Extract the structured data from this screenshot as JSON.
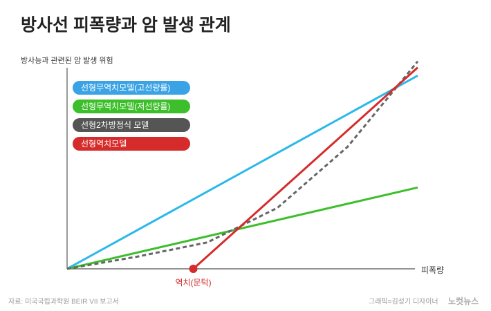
{
  "chart_data": {
    "type": "line",
    "title": "방사선 피폭량과 암 발생 관계",
    "y_label": "방사능과 관련된 암 발생 위험",
    "x_label": "피폭량",
    "threshold_label": "역치(문턱)",
    "source": "자료: 미국국립과학원 BEIR VII 보고서",
    "credit": "그래픽=김성기 디자이너",
    "logo": "노컷뉴스",
    "xlim": [
      0,
      100
    ],
    "ylim": [
      0,
      105
    ],
    "series": [
      {
        "name": "선형무역치모델(고선량률)",
        "color": "#2bb8ea",
        "legend_color": "#3aa3e6",
        "style": "solid",
        "x": [
          0,
          100
        ],
        "values": [
          0,
          95
        ]
      },
      {
        "name": "선형무역치모델(저선량률)",
        "color": "#3cbf2a",
        "legend_color": "#3cbf2a",
        "style": "solid",
        "x": [
          0,
          100
        ],
        "values": [
          0,
          40
        ]
      },
      {
        "name": "선형2차방정식 모델",
        "color": "#666666",
        "legend_color": "#555555",
        "style": "dashed",
        "x": [
          0,
          20,
          40,
          60,
          80,
          100
        ],
        "values": [
          0,
          6,
          13,
          30,
          60,
          102
        ]
      },
      {
        "name": "선형역치모델",
        "color": "#d62b2b",
        "legend_color": "#d62b2b",
        "style": "solid",
        "x": [
          36,
          100
        ],
        "values": [
          0,
          99
        ]
      }
    ]
  }
}
